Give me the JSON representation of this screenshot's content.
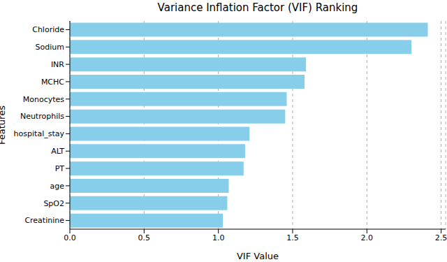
{
  "chart_data": {
    "type": "bar",
    "orientation": "horizontal",
    "title": "Variance Inflation Factor (VIF) Ranking",
    "x_label": "VIF Value",
    "y_label": "Features",
    "categories": [
      "Chloride",
      "Sodium",
      "INR",
      "MCHC",
      "Monocytes",
      "Neutrophils",
      "hospital_stay",
      "ALT",
      "PT",
      "age",
      "SpO2",
      "Creatinine"
    ],
    "values": [
      2.41,
      2.3,
      1.59,
      1.58,
      1.46,
      1.45,
      1.21,
      1.18,
      1.17,
      1.07,
      1.06,
      1.03
    ],
    "color": "#87ceeb",
    "xlim": [
      0,
      2.53
    ],
    "xticks": [
      {
        "value": 0,
        "label": "0.0"
      },
      {
        "value": 0.5,
        "label": "0.5"
      },
      {
        "value": 1,
        "label": "1.0"
      },
      {
        "value": 1.5,
        "label": "1.5"
      },
      {
        "value": 2,
        "label": "2.0"
      },
      {
        "value": 2.5,
        "label": "2.5"
      }
    ],
    "grid": true
  }
}
